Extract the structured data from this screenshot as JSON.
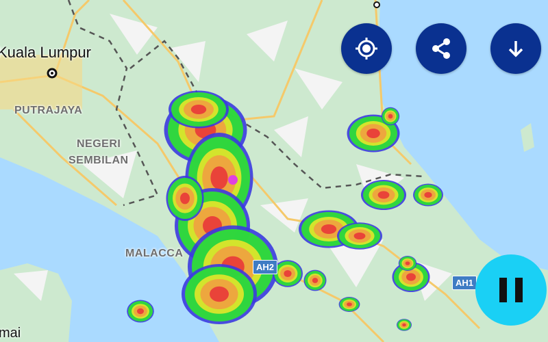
{
  "map": {
    "cities": [
      {
        "name": "Kuala Lumpur"
      }
    ],
    "regions": [
      {
        "name": "PUTRAJAYA"
      },
      {
        "name": "NEGERI"
      },
      {
        "name": "SEMBILAN"
      },
      {
        "name": "MALACCA"
      }
    ],
    "partial_labels": [
      {
        "name": "mai"
      }
    ],
    "road_shields": [
      {
        "name": "AH2"
      },
      {
        "name": "AH1"
      }
    ],
    "colors": {
      "land": "#cde9cf",
      "sea": "#aadaff",
      "road": "#f5c96a",
      "radar_light": "#22dd22",
      "radar_heavy": "#e83030"
    }
  },
  "controls": {
    "locate": {
      "icon": "crosshair-icon"
    },
    "share": {
      "icon": "share-icon"
    },
    "download": {
      "icon": "arrow-down-icon"
    },
    "playback": {
      "icon": "pause-icon",
      "state": "playing"
    }
  }
}
